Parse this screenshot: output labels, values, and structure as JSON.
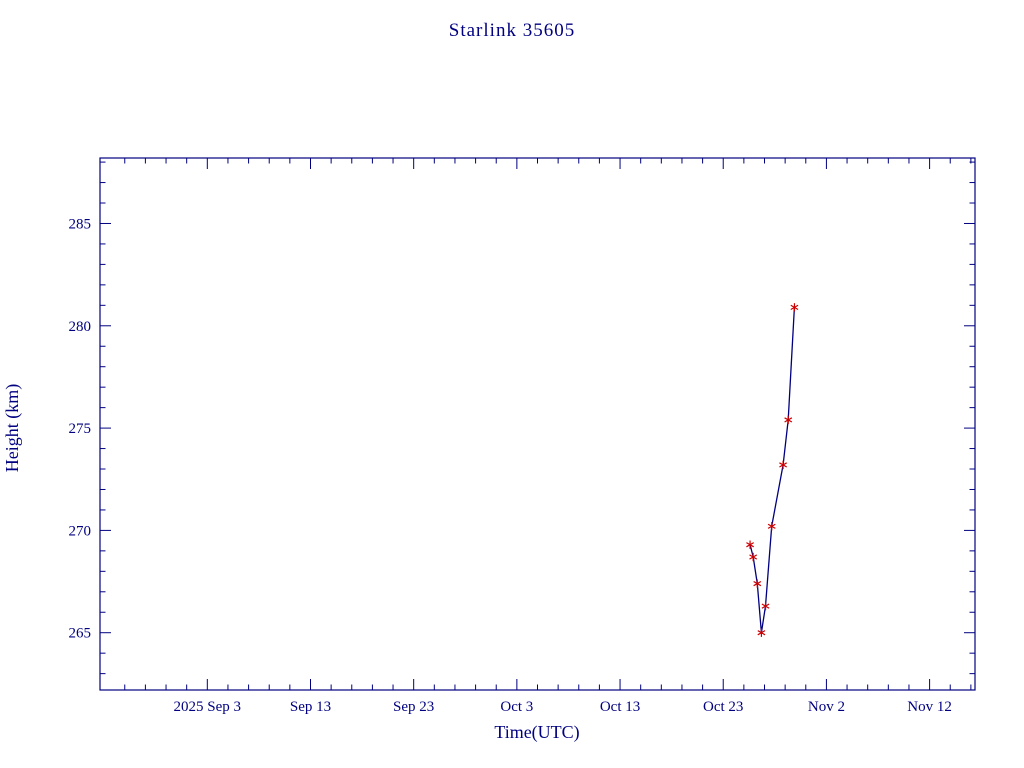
{
  "page": {
    "background_color": "#ffffff"
  },
  "chart_data": {
    "type": "line",
    "title": "Starlink 35605",
    "xlabel": "Time(UTC)",
    "ylabel": "Height (km)",
    "axis_color": "#000080",
    "line_color": "#000080",
    "marker": "asterisk",
    "marker_color": "#cc0000",
    "grid": false,
    "legend": "none",
    "x_unit": "days since 2025 Sep 3 00:00 UTC",
    "xlim": [
      -10.4,
      74.4
    ],
    "ylim": [
      262.2,
      288.2
    ],
    "y_ticks": [
      {
        "value": 265,
        "label": "265"
      },
      {
        "value": 270,
        "label": "270"
      },
      {
        "value": 275,
        "label": "275"
      },
      {
        "value": 280,
        "label": "280"
      },
      {
        "value": 285,
        "label": "285"
      }
    ],
    "x_ticks": [
      {
        "day": 0,
        "label": "2025 Sep 3"
      },
      {
        "day": 10,
        "label": "Sep 13"
      },
      {
        "day": 20,
        "label": "Sep 23"
      },
      {
        "day": 30,
        "label": "Oct 3"
      },
      {
        "day": 40,
        "label": "Oct 13"
      },
      {
        "day": 50,
        "label": "Oct 23"
      },
      {
        "day": 60,
        "label": "Nov 2"
      },
      {
        "day": 70,
        "label": "Nov 12"
      }
    ],
    "x_minor_step_days": 2,
    "y_minor_step_km": 1,
    "series": [
      {
        "name": "height",
        "points": [
          {
            "date": "2025 Oct 25.6",
            "day": 52.6,
            "height_km": 269.3
          },
          {
            "date": "2025 Oct 25.9",
            "day": 52.9,
            "height_km": 268.7
          },
          {
            "date": "2025 Oct 26.3",
            "day": 53.3,
            "height_km": 267.4
          },
          {
            "date": "2025 Oct 26.7",
            "day": 53.7,
            "height_km": 265.0
          },
          {
            "date": "2025 Oct 27.1",
            "day": 54.1,
            "height_km": 266.3
          },
          {
            "date": "2025 Oct 27.7",
            "day": 54.7,
            "height_km": 270.2
          },
          {
            "date": "2025 Oct 28.8",
            "day": 55.8,
            "height_km": 273.2
          },
          {
            "date": "2025 Oct 29.3",
            "day": 56.3,
            "height_km": 275.4
          },
          {
            "date": "2025 Oct 29.9",
            "day": 56.9,
            "height_km": 280.9
          }
        ]
      }
    ]
  }
}
